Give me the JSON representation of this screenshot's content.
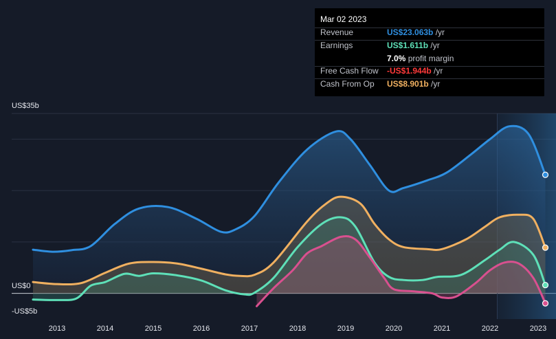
{
  "chart_data": {
    "type": "area",
    "y_axis_labels": {
      "top": "US$35b",
      "zero": "US$0",
      "bottom": "-US$5b"
    },
    "ylim": [
      -5,
      35
    ],
    "x_ticks": [
      "2013",
      "2014",
      "2015",
      "2016",
      "2017",
      "2018",
      "2019",
      "2020",
      "2021",
      "2022",
      "2023"
    ],
    "xlim": [
      2012.5,
      2023.2
    ],
    "forecast_shade_from": 2022.15,
    "grid": true,
    "series": [
      {
        "name": "Revenue",
        "color": "#2f8fe0",
        "fill": true,
        "x": [
          2012.5,
          2012.9,
          2013.3,
          2013.7,
          2014.2,
          2014.7,
          2015.3,
          2015.9,
          2016.4,
          2016.7,
          2017.1,
          2017.6,
          2018.2,
          2018.8,
          2019.1,
          2019.5,
          2019.9,
          2020.2,
          2020.7,
          2021.1,
          2021.6,
          2022.0,
          2022.4,
          2022.8,
          2023.15
        ],
        "y": [
          8.5,
          8.1,
          8.4,
          9.2,
          13.5,
          16.5,
          16.8,
          14.5,
          12.0,
          12.4,
          15.0,
          21.5,
          28.0,
          31.5,
          30.0,
          25.0,
          20.0,
          20.5,
          22.0,
          23.5,
          27.0,
          30.0,
          32.5,
          31.0,
          23.063
        ]
      },
      {
        "name": "Cash From Op",
        "color": "#f0b060",
        "fill": true,
        "x": [
          2012.5,
          2013.0,
          2013.5,
          2014.0,
          2014.5,
          2015.0,
          2015.5,
          2016.0,
          2016.5,
          2016.8,
          2017.1,
          2017.5,
          2018.2,
          2018.6,
          2018.9,
          2019.3,
          2019.6,
          2019.9,
          2020.2,
          2020.7,
          2021.0,
          2021.5,
          2021.9,
          2022.2,
          2022.6,
          2022.9,
          2023.15
        ],
        "y": [
          2.2,
          1.8,
          2.0,
          4.0,
          5.8,
          6.1,
          5.8,
          4.8,
          3.7,
          3.4,
          3.6,
          6.0,
          14.0,
          17.5,
          18.8,
          17.5,
          13.5,
          10.5,
          9.0,
          8.6,
          8.6,
          10.5,
          13.0,
          14.8,
          15.3,
          14.5,
          8.901
        ]
      },
      {
        "name": "Earnings",
        "color": "#5ee0b8",
        "fill": true,
        "x": [
          2012.5,
          2013.0,
          2013.4,
          2013.7,
          2014.0,
          2014.4,
          2014.7,
          2015.0,
          2015.5,
          2016.0,
          2016.5,
          2016.9,
          2017.1,
          2017.5,
          2018.0,
          2018.5,
          2018.9,
          2019.2,
          2019.6,
          2019.9,
          2020.2,
          2020.6,
          2020.9,
          2021.4,
          2021.9,
          2022.2,
          2022.5,
          2022.9,
          2023.15
        ],
        "y": [
          -1.2,
          -1.3,
          -1.0,
          1.5,
          2.2,
          3.8,
          3.4,
          3.9,
          3.5,
          2.5,
          0.6,
          -0.2,
          0.1,
          3.0,
          9.0,
          13.5,
          14.8,
          13.0,
          6.0,
          3.2,
          2.6,
          2.6,
          3.2,
          3.6,
          6.5,
          8.5,
          10.0,
          7.5,
          1.611
        ]
      },
      {
        "name": "Free Cash Flow",
        "color": "#d9508f",
        "fill": true,
        "x": [
          2017.15,
          2017.5,
          2017.9,
          2018.2,
          2018.5,
          2018.9,
          2019.2,
          2019.5,
          2019.8,
          2020.0,
          2020.4,
          2020.8,
          2021.0,
          2021.3,
          2021.7,
          2022.0,
          2022.3,
          2022.6,
          2022.9,
          2023.15
        ],
        "y": [
          -2.5,
          1.0,
          4.5,
          7.8,
          9.2,
          11.0,
          10.5,
          7.0,
          3.0,
          0.8,
          0.4,
          0.0,
          -0.8,
          -0.6,
          2.0,
          4.5,
          6.0,
          5.8,
          3.0,
          -1.944
        ]
      }
    ]
  },
  "tooltip": {
    "date": "Mar 02 2023",
    "rows": [
      {
        "label": "Revenue",
        "value": "US$23.063b",
        "unit": " /yr",
        "color": "#2f8fe0"
      },
      {
        "label": "Earnings",
        "value": "US$1.611b",
        "unit": " /yr",
        "color": "#5ee0b8"
      },
      {
        "label": "",
        "value": "7.0%",
        "unit": " profit margin",
        "color": "#ffffff"
      },
      {
        "label": "Free Cash Flow",
        "value": "-US$1.944b",
        "unit": " /yr",
        "color": "#ff3a3a"
      },
      {
        "label": "Cash From Op",
        "value": "US$8.901b",
        "unit": " /yr",
        "color": "#f0b060"
      }
    ]
  }
}
